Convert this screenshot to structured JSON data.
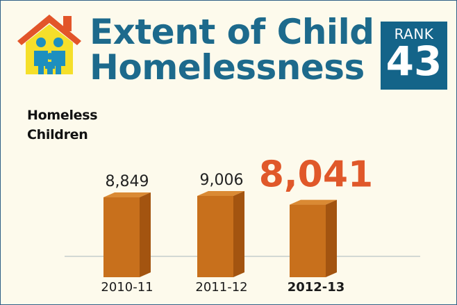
{
  "title": {
    "line1": "Extent of Child",
    "line2": "Homelessness"
  },
  "rank": {
    "label": "RANK",
    "value": "43"
  },
  "chart_data": {
    "type": "bar",
    "ylabel_lines": [
      "Homeless",
      "Children"
    ],
    "categories": [
      "2010-11",
      "2011-12",
      "2012-13"
    ],
    "values": [
      8849,
      9006,
      8041
    ],
    "value_labels": [
      "8,849",
      "9,006",
      "8,041"
    ],
    "highlight_index": 2,
    "colors": {
      "bar_front": "#c8701c",
      "bar_side": "#a35410",
      "bar_top": "#da8a34",
      "highlight_value": "#e0582a",
      "title": "#1d6a8c",
      "rank_box": "#146489"
    }
  }
}
